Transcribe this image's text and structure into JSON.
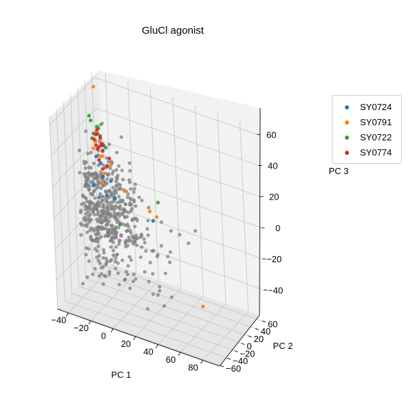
{
  "chart_data": {
    "type": "scatter",
    "projection": "3d",
    "title": "GluCl agonist",
    "xlabel": "PC 1",
    "ylabel": "PC 2",
    "zlabel": "PC 3",
    "x_ticks": [
      -40,
      -20,
      0,
      20,
      40,
      60,
      80
    ],
    "y_ticks": [
      -60,
      -40,
      -20,
      0,
      20,
      40,
      60
    ],
    "z_ticks": [
      -40,
      -20,
      0,
      20,
      40,
      60
    ],
    "xlim": [
      -50,
      95
    ],
    "ylim": [
      -62,
      68
    ],
    "zlim": [
      -58,
      65
    ],
    "grid": true,
    "legend_position": "right",
    "background_points": {
      "color": "#7f7f7f",
      "description_count": 520,
      "centroid": [
        -35,
        35,
        -15
      ],
      "spread": [
        14,
        12,
        18
      ]
    },
    "series": [
      {
        "name": "SY0724",
        "color": "#1f77b4",
        "points": [
          [
            -38,
            38,
            15
          ],
          [
            -35,
            34,
            8
          ],
          [
            -30,
            40,
            5
          ],
          [
            -42,
            30,
            2
          ],
          [
            -33,
            36,
            -4
          ],
          [
            -28,
            42,
            -6
          ],
          [
            10,
            30,
            -8
          ],
          [
            -40,
            33,
            20
          ],
          [
            -36,
            42,
            26
          ]
        ]
      },
      {
        "name": "SY0791",
        "color": "#ff7f0e",
        "points": [
          [
            -45,
            48,
            60
          ],
          [
            -40,
            36,
            35
          ],
          [
            -38,
            40,
            30
          ],
          [
            -42,
            38,
            28
          ],
          [
            -35,
            30,
            22
          ],
          [
            -30,
            42,
            15
          ],
          [
            -34,
            36,
            10
          ],
          [
            -36,
            33,
            5
          ],
          [
            -20,
            45,
            0
          ],
          [
            8,
            28,
            -2
          ],
          [
            12,
            34,
            -6
          ],
          [
            75,
            -40,
            -30
          ],
          [
            -38,
            44,
            18
          ],
          [
            -43,
            35,
            24
          ]
        ]
      },
      {
        "name": "SY0722",
        "color": "#2ca02c",
        "points": [
          [
            -48,
            42,
            42
          ],
          [
            -46,
            40,
            40
          ],
          [
            -40,
            38,
            38
          ],
          [
            -42,
            34,
            34
          ],
          [
            -38,
            40,
            32
          ],
          [
            -44,
            36,
            30
          ],
          [
            -36,
            36,
            28
          ],
          [
            -34,
            42,
            25
          ],
          [
            15,
            30,
            5
          ],
          [
            -20,
            30,
            -18
          ],
          [
            -40,
            42,
            36
          ]
        ]
      },
      {
        "name": "SY0774",
        "color": "#d62728",
        "points": [
          [
            -40,
            38,
            36
          ],
          [
            -39,
            36,
            34
          ],
          [
            -41,
            37,
            33
          ],
          [
            -38,
            40,
            31
          ],
          [
            -42,
            35,
            30
          ],
          [
            -36,
            38,
            28
          ],
          [
            -40,
            34,
            27
          ],
          [
            -37,
            41,
            26
          ],
          [
            -39,
            39,
            25
          ],
          [
            -35,
            36,
            24
          ],
          [
            -41,
            40,
            23
          ],
          [
            -30,
            38,
            20
          ],
          [
            -38,
            34,
            18
          ],
          [
            -33,
            40,
            14
          ],
          [
            -36,
            37,
            12
          ]
        ]
      }
    ]
  }
}
